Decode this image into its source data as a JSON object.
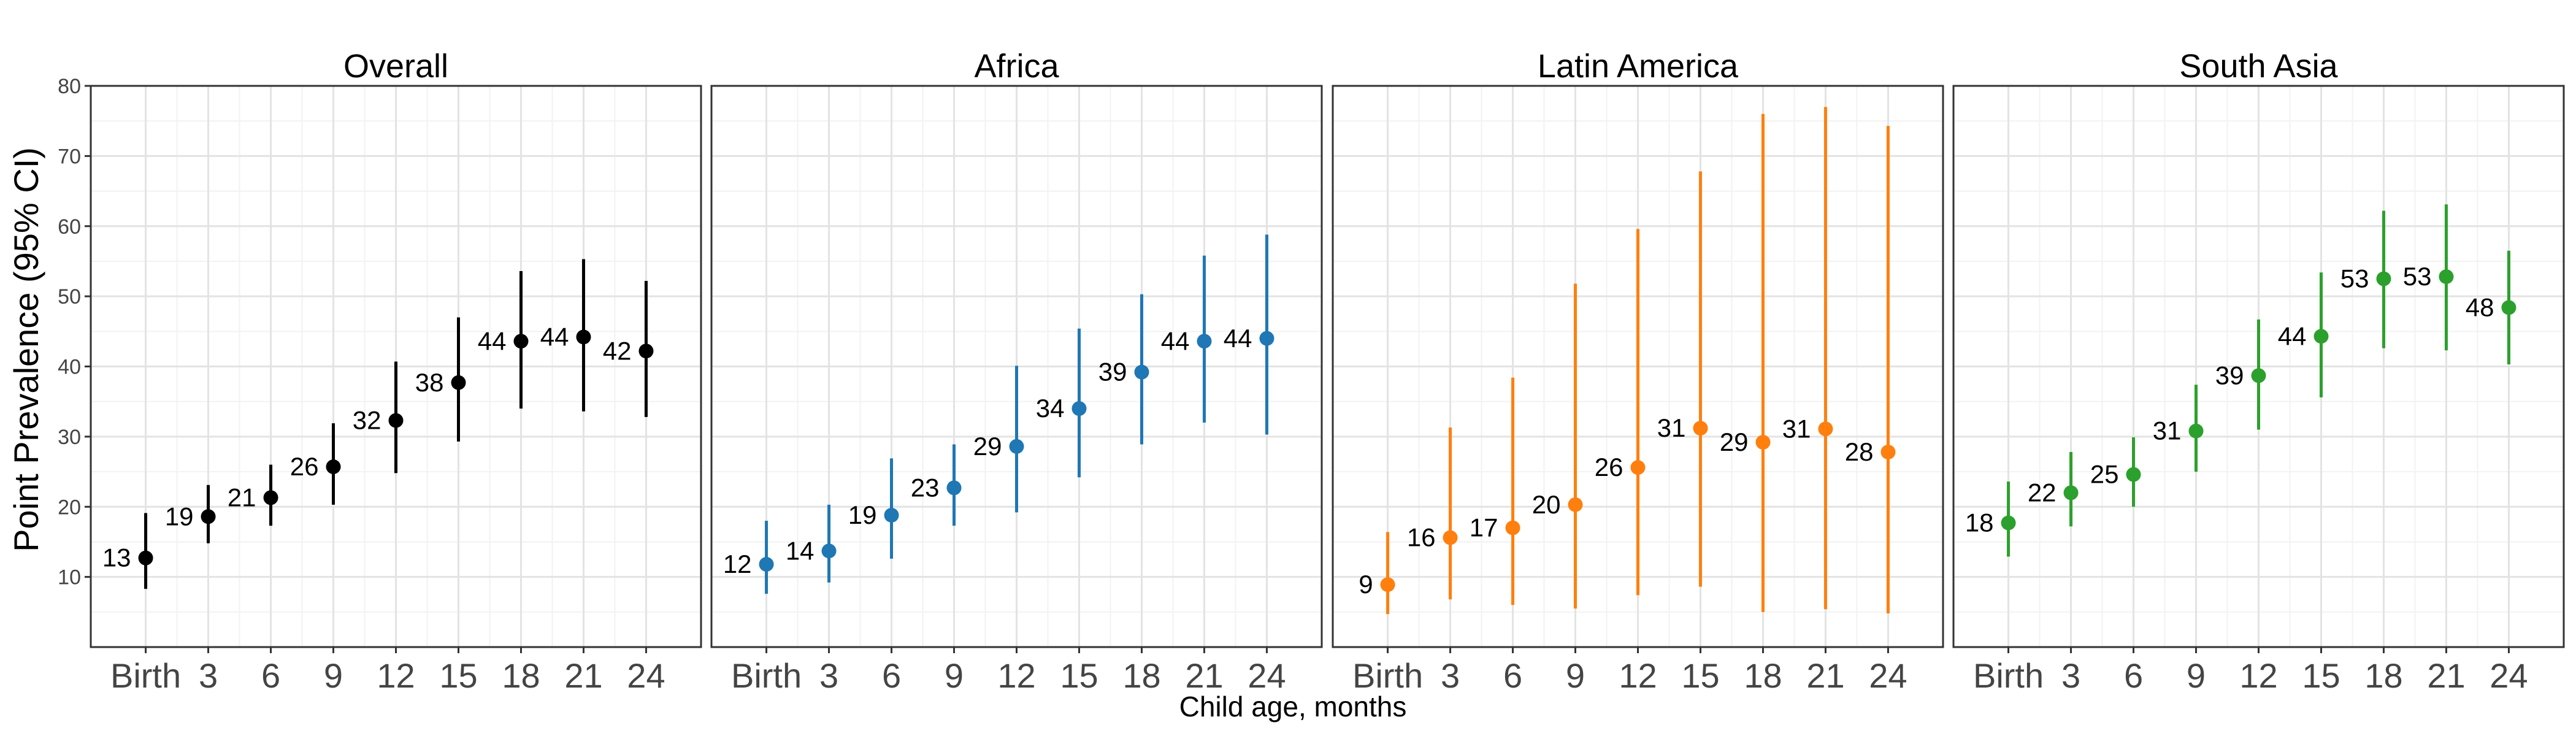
{
  "chart_data": {
    "type": "scatter",
    "subtype": "point-range (estimate with 95% CI)",
    "ylabel": "Point Prevalence (95% CI)",
    "xlabel": "Child age, months",
    "x_categories": [
      "Birth",
      "3",
      "6",
      "9",
      "12",
      "15",
      "18",
      "21",
      "24"
    ],
    "ylim": [
      0,
      80
    ],
    "y_ticks": [
      10,
      20,
      30,
      40,
      50,
      60,
      70,
      80
    ],
    "grid": true,
    "panels": [
      {
        "title": "Overall",
        "color": "#000000",
        "estimates": [
          12.7,
          18.6,
          21.3,
          25.7,
          32.3,
          37.7,
          43.6,
          44.2,
          42.2
        ],
        "lower": [
          8.3,
          14.8,
          17.3,
          20.3,
          24.8,
          29.3,
          34.0,
          33.6,
          32.8
        ],
        "upper": [
          19.1,
          23.1,
          26.0,
          31.9,
          40.7,
          47.0,
          53.6,
          55.3,
          52.2
        ],
        "labels": [
          "13",
          "19",
          "21",
          "26",
          "32",
          "38",
          "44",
          "44",
          "42"
        ]
      },
      {
        "title": "Africa",
        "color": "#1F77B4",
        "estimates": [
          11.8,
          13.7,
          18.8,
          22.7,
          28.6,
          34.0,
          39.2,
          43.6,
          44.0
        ],
        "lower": [
          7.6,
          9.2,
          12.6,
          17.3,
          19.2,
          24.2,
          28.9,
          32.0,
          30.3
        ],
        "upper": [
          18.0,
          20.3,
          26.9,
          28.9,
          40.1,
          45.4,
          50.3,
          55.8,
          58.8
        ],
        "labels": [
          "12",
          "14",
          "19",
          "23",
          "29",
          "34",
          "39",
          "44",
          "44"
        ]
      },
      {
        "title": "Latin America",
        "color": "#FF7F0E",
        "estimates": [
          8.9,
          15.6,
          17.0,
          20.3,
          25.6,
          31.2,
          29.2,
          31.1,
          27.8
        ],
        "lower": [
          4.7,
          6.8,
          6.0,
          5.5,
          7.4,
          8.6,
          5.0,
          5.4,
          4.8
        ],
        "upper": [
          16.4,
          31.3,
          38.4,
          51.8,
          59.6,
          67.8,
          76.0,
          77.0,
          74.3
        ],
        "labels": [
          "9",
          "16",
          "17",
          "20",
          "26",
          "31",
          "29",
          "31",
          "28"
        ]
      },
      {
        "title": "South Asia",
        "color": "#2CA02C",
        "estimates": [
          17.7,
          22.0,
          24.6,
          30.8,
          38.7,
          44.3,
          52.5,
          52.8,
          48.4
        ],
        "lower": [
          12.9,
          17.2,
          20.0,
          25.0,
          31.0,
          35.6,
          42.6,
          42.3,
          40.3
        ],
        "upper": [
          23.6,
          27.8,
          29.9,
          37.4,
          46.7,
          53.4,
          62.2,
          63.1,
          56.5
        ],
        "labels": [
          "18",
          "22",
          "25",
          "31",
          "39",
          "44",
          "53",
          "53",
          "48"
        ]
      }
    ]
  }
}
